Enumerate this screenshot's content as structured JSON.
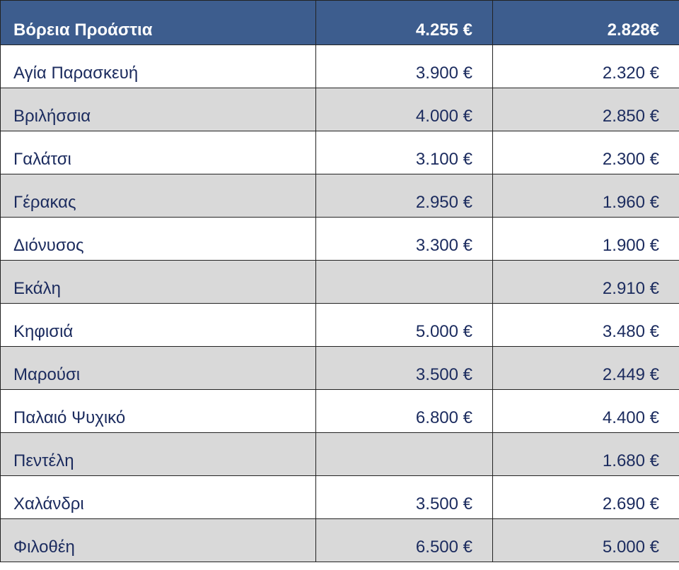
{
  "table": {
    "header": [
      "Βόρεια Προάστια",
      "4.255 €",
      "2.828€"
    ],
    "rows": [
      [
        "Αγία Παρασκευή",
        "3.900 €",
        "2.320 €"
      ],
      [
        "Βριλήσσια",
        "4.000 €",
        "2.850 €"
      ],
      [
        "Γαλάτσι",
        "3.100 €",
        "2.300 €"
      ],
      [
        "Γέρακας",
        "2.950 €",
        "1.960 €"
      ],
      [
        "Διόνυσος",
        "3.300 €",
        "1.900 €"
      ],
      [
        "Εκάλη",
        null,
        "2.910 €"
      ],
      [
        "Κηφισιά",
        "5.000 €",
        "3.480 €"
      ],
      [
        "Μαρούσι",
        "3.500 €",
        "2.449 €"
      ],
      [
        "Παλαιό Ψυχικό",
        "6.800 €",
        "4.400 €"
      ],
      [
        "Πεντέλη",
        null,
        "1.680 €"
      ],
      [
        "Χαλάνδρι",
        "3.500 €",
        "2.690 €"
      ],
      [
        "Φιλοθέη",
        "6.500 €",
        "5.000 €"
      ]
    ]
  }
}
